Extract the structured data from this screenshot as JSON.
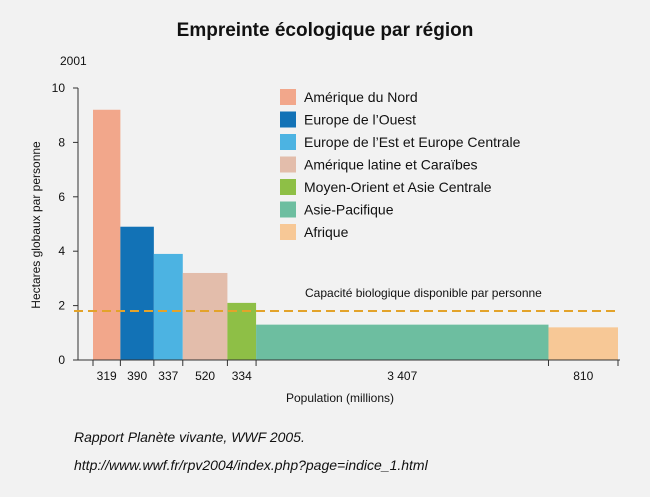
{
  "chart_data": {
    "type": "bar",
    "variant": "variable-width",
    "title": "Empreinte écologique par région",
    "subtitle": "2001",
    "ylabel": "Hectares globaux par personne",
    "xlabel": "Population (millions)",
    "ylim": [
      0,
      10
    ],
    "yticks": [
      "0",
      "2",
      "4",
      "6",
      "8",
      "10"
    ],
    "legend_position": "top-right",
    "categories": [
      "Amérique du Nord",
      "Europe de l’Ouest",
      "Europe de l’Est et Europe Centrale",
      "Amérique latine et Caraïbes",
      "Moyen-Orient et Asie Centrale",
      "Asie-Pacifique",
      "Afrique"
    ],
    "population_labels": [
      "319",
      "390",
      "337",
      "520",
      "334",
      "3 407",
      "810"
    ],
    "population": [
      319,
      390,
      337,
      520,
      334,
      3407,
      810
    ],
    "values": [
      9.2,
      4.9,
      3.9,
      3.2,
      2.1,
      1.3,
      1.2
    ],
    "colors": [
      "#f2a78b",
      "#1272b6",
      "#4cb3e2",
      "#e3bdab",
      "#8ebf46",
      "#6dbea0",
      "#f7c896"
    ],
    "reference_line": {
      "label": "Capacité biologique disponible par personne",
      "value": 1.8,
      "color": "#e3a32a"
    }
  },
  "source": "Rapport Planète vivante, WWF 2005.",
  "url": "http://www.wwf.fr/rpv2004/index.php?page=indice_1.html"
}
